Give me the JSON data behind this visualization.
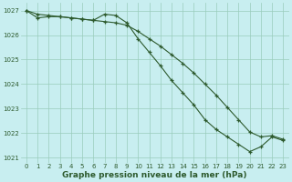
{
  "line1_x": [
    0,
    1,
    2,
    3,
    4,
    5,
    6,
    7,
    8,
    9,
    10,
    11,
    12,
    13,
    14,
    15,
    16,
    17,
    18,
    19,
    20,
    21,
    22,
    23
  ],
  "line1_y": [
    1027.0,
    1026.85,
    1026.8,
    1026.75,
    1026.7,
    1026.65,
    1026.6,
    1026.55,
    1026.5,
    1026.4,
    1026.15,
    1025.85,
    1025.55,
    1025.2,
    1024.85,
    1024.45,
    1024.0,
    1023.55,
    1023.05,
    1022.55,
    1022.05,
    1021.85,
    1021.9,
    1021.75
  ],
  "line2_x": [
    0,
    1,
    2,
    3,
    4,
    5,
    6,
    7,
    8,
    9,
    10,
    11,
    12,
    13,
    14,
    15,
    16,
    17,
    18,
    19,
    20,
    21,
    22,
    23
  ],
  "line2_y": [
    1027.0,
    1026.7,
    1026.75,
    1026.75,
    1026.7,
    1026.65,
    1026.6,
    1026.85,
    1026.8,
    1026.5,
    1025.85,
    1025.3,
    1024.75,
    1024.15,
    1023.65,
    1023.15,
    1022.55,
    1022.15,
    1021.85,
    1021.55,
    1021.25,
    1021.45,
    1021.85,
    1021.7
  ],
  "background_color": "#c8eef0",
  "grid_color": "#99ccbb",
  "line_color": "#2d5a2d",
  "marker": "+",
  "markersize": 3.5,
  "linewidth": 0.8,
  "markeredgewidth": 0.9,
  "ylim": [
    1020.8,
    1027.3
  ],
  "xlim": [
    -0.5,
    23.5
  ],
  "yticks": [
    1021,
    1022,
    1023,
    1024,
    1025,
    1026,
    1027
  ],
  "xticks": [
    0,
    1,
    2,
    3,
    4,
    5,
    6,
    7,
    8,
    9,
    10,
    11,
    12,
    13,
    14,
    15,
    16,
    17,
    18,
    19,
    20,
    21,
    22,
    23
  ],
  "xlabel": "Graphe pression niveau de la mer (hPa)",
  "xlabel_fontsize": 6.5,
  "tick_fontsize": 5.0
}
